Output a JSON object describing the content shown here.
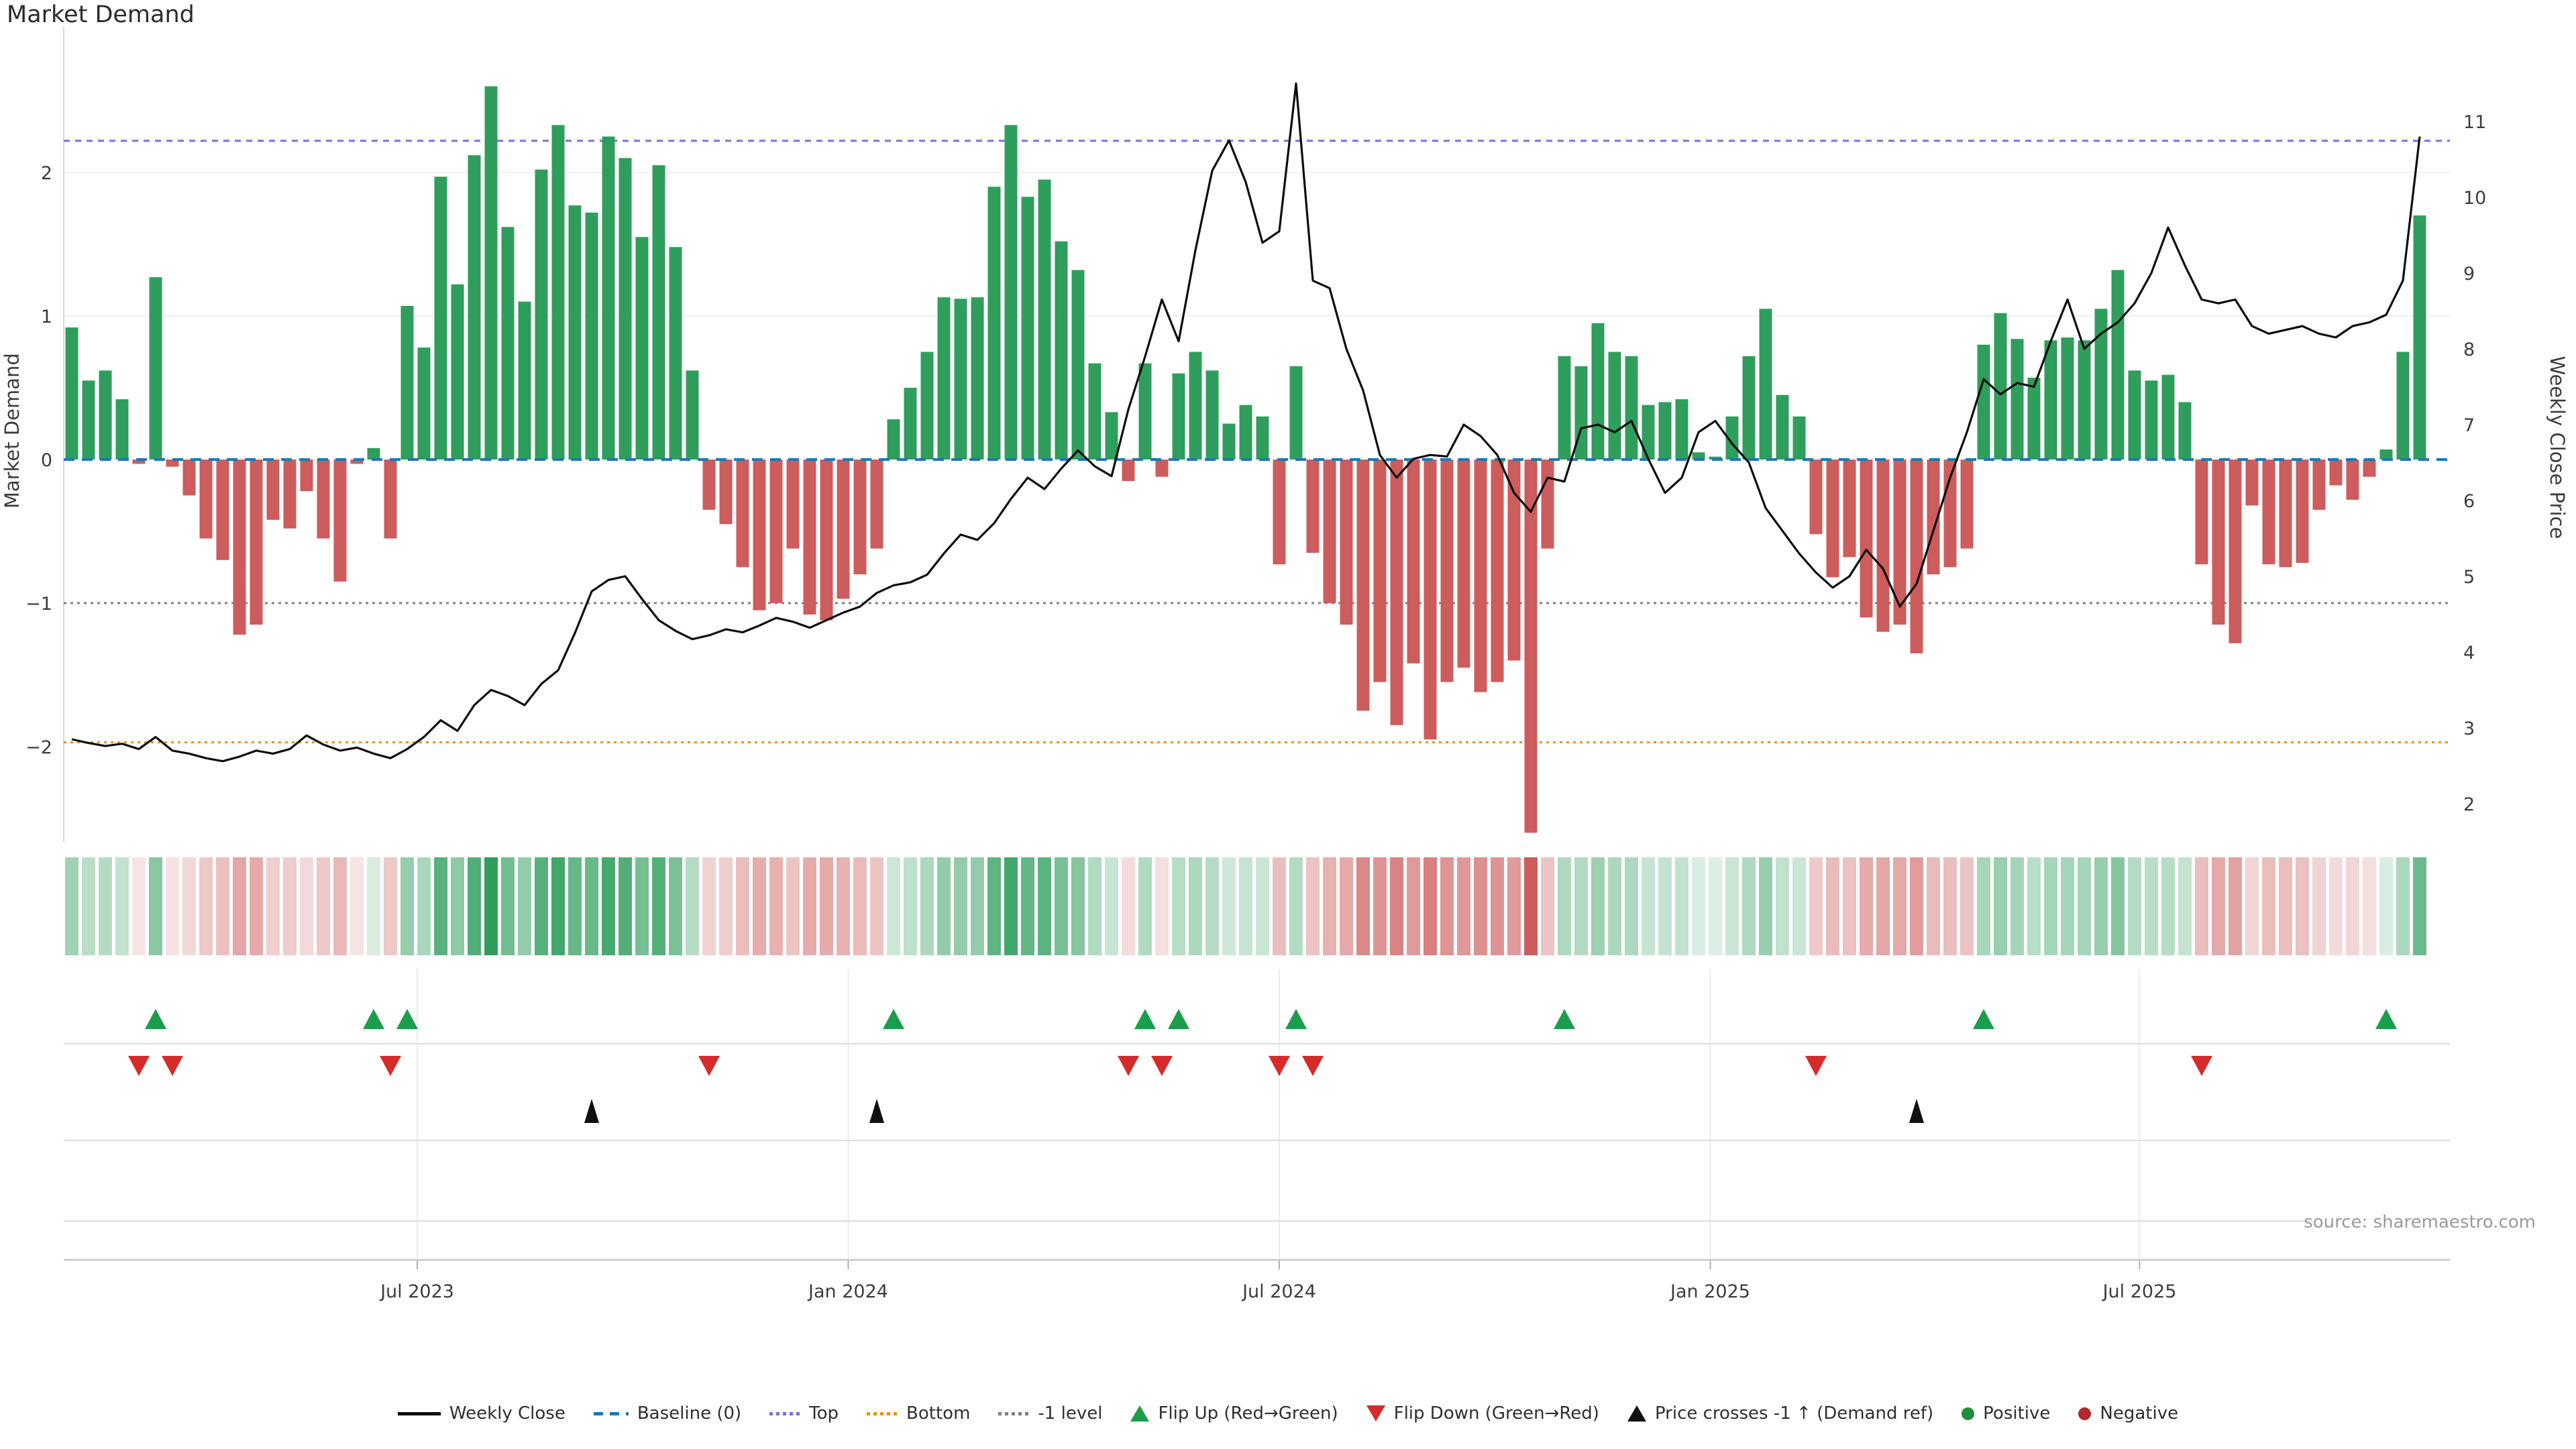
{
  "title": "Market Demand",
  "source": "source: sharemaestro.com",
  "axes": {
    "left": {
      "label": "Market Demand",
      "ticks": [
        "2",
        "1",
        "0",
        "−1",
        "−2"
      ],
      "tick_values": [
        2,
        1,
        0,
        -1,
        -2
      ],
      "range": [
        -2.8,
        3.0
      ]
    },
    "right": {
      "label": "Weekly Close Price",
      "ticks": [
        "2",
        "3",
        "4",
        "5",
        "6",
        "7",
        "8",
        "9",
        "10",
        "11"
      ],
      "tick_values": [
        2,
        3,
        4,
        5,
        6,
        7,
        8,
        9,
        10,
        11
      ],
      "range": [
        1.5,
        12.2
      ]
    },
    "x": {
      "tick_labels": [
        "Jul 2023",
        "Jan 2024",
        "Jul 2024",
        "Jan 2025",
        "Jul 2025"
      ],
      "tick_weeks": [
        20.6,
        46.3,
        72.0,
        97.7,
        123.3
      ]
    }
  },
  "reference_lines": {
    "baseline": {
      "label": "Baseline (0)",
      "value": 0,
      "color": "#1f77b4",
      "style": "dashed"
    },
    "top": {
      "label": "Top",
      "value": 2.22,
      "color": "#7572d8",
      "style": "dotted"
    },
    "bottom": {
      "label": "Bottom",
      "value": -1.97,
      "color": "#e8930c",
      "style": "dotted"
    },
    "minus1": {
      "label": "-1 level",
      "value": -1.0,
      "color": "#7f7f7f",
      "style": "dotted"
    }
  },
  "colors": {
    "bar_positive": "#2f9e5c",
    "bar_negative": "#cd5c5c",
    "price_line": "#0d0d0d",
    "flip_up": "#1b9e4b",
    "flip_down": "#d62b2b",
    "price_cross": "#111111",
    "positive_dot": "#1e8e3e",
    "negative_dot": "#b3282d",
    "grid": "#eef0f3",
    "separator": "#dcdcdc",
    "axis_text": "#3d3d3d",
    "source_text": "#9a9a9a"
  },
  "legend": {
    "items": [
      {
        "glyph": "line",
        "color": "#0d0d0d",
        "label": "Weekly Close"
      },
      {
        "glyph": "dash",
        "color": "#1f77b4",
        "label": "Baseline (0)"
      },
      {
        "glyph": "dot",
        "color": "#7572d8",
        "label": "Top"
      },
      {
        "glyph": "dot",
        "color": "#e8930c",
        "label": "Bottom"
      },
      {
        "glyph": "dot",
        "color": "#7f7f7f",
        "label": "-1 level"
      },
      {
        "glyph": "tri-up",
        "color": "#1b9e4b",
        "label": "Flip Up (Red→Green)"
      },
      {
        "glyph": "tri-down",
        "color": "#d62b2b",
        "label": "Flip Down (Green→Red)"
      },
      {
        "glyph": "tri-up",
        "color": "#111111",
        "label": "Price crosses -1 ↑ (Demand ref)"
      },
      {
        "glyph": "circle",
        "color": "#1e8e3e",
        "label": "Positive"
      },
      {
        "glyph": "circle",
        "color": "#b3282d",
        "label": "Negative"
      }
    ]
  },
  "chart_data": {
    "type": "combo",
    "x_unit": "weeks",
    "x_span": "Feb 2023 - Nov 2025",
    "x_ticks": [
      {
        "label": "Jul 2023",
        "week": 20.6
      },
      {
        "label": "Jan 2024",
        "week": 46.3
      },
      {
        "label": "Jul 2024",
        "week": 72.0
      },
      {
        "label": "Jan 2025",
        "week": 97.7
      },
      {
        "label": "Jul 2025",
        "week": 123.3
      }
    ],
    "series": [
      {
        "name": "Market Demand",
        "type": "bar",
        "axis": "left",
        "values": [
          0.92,
          0.55,
          0.62,
          0.42,
          -0.03,
          1.27,
          -0.05,
          -0.25,
          -0.55,
          -0.7,
          -1.22,
          -1.15,
          -0.42,
          -0.48,
          -0.22,
          -0.55,
          -0.85,
          -0.03,
          0.08,
          -0.55,
          1.07,
          0.78,
          1.97,
          1.22,
          2.12,
          2.6,
          1.62,
          1.1,
          2.02,
          2.33,
          1.77,
          1.72,
          2.25,
          2.1,
          1.55,
          2.05,
          1.48,
          0.62,
          -0.35,
          -0.45,
          -0.75,
          -1.05,
          -1.0,
          -0.62,
          -1.08,
          -1.12,
          -0.97,
          -0.8,
          -0.62,
          0.28,
          0.5,
          0.75,
          1.13,
          1.12,
          1.13,
          1.9,
          2.33,
          1.83,
          1.95,
          1.52,
          1.32,
          0.67,
          0.33,
          -0.15,
          0.67,
          -0.12,
          0.6,
          0.75,
          0.62,
          0.25,
          0.38,
          0.3,
          -0.73,
          0.65,
          -0.65,
          -1.0,
          -1.15,
          -1.75,
          -1.55,
          -1.85,
          -1.42,
          -1.95,
          -1.55,
          -1.45,
          -1.62,
          -1.55,
          -1.4,
          -2.6,
          -0.62,
          0.72,
          0.65,
          0.95,
          0.75,
          0.72,
          0.38,
          0.4,
          0.42,
          0.05,
          0.02,
          0.3,
          0.72,
          1.05,
          0.45,
          0.3,
          -0.52,
          -0.82,
          -0.68,
          -1.1,
          -1.2,
          -1.15,
          -1.35,
          -0.8,
          -0.75,
          -0.62,
          0.8,
          1.02,
          0.84,
          0.57,
          0.83,
          0.85,
          0.83,
          1.05,
          1.32,
          0.62,
          0.55,
          0.59,
          0.4,
          -0.73,
          -1.15,
          -1.28,
          -0.32,
          -0.73,
          -0.75,
          -0.72,
          -0.35,
          -0.18,
          -0.28,
          -0.12,
          0.07,
          0.75,
          1.7
        ]
      },
      {
        "name": "Weekly Close",
        "type": "line",
        "axis": "right",
        "values": [
          2.85,
          2.8,
          2.76,
          2.79,
          2.72,
          2.88,
          2.7,
          2.66,
          2.6,
          2.56,
          2.62,
          2.7,
          2.66,
          2.72,
          2.9,
          2.78,
          2.7,
          2.74,
          2.66,
          2.6,
          2.72,
          2.88,
          3.1,
          2.96,
          3.3,
          3.5,
          3.42,
          3.3,
          3.58,
          3.76,
          4.25,
          4.8,
          4.95,
          5.0,
          4.7,
          4.42,
          4.28,
          4.17,
          4.22,
          4.3,
          4.26,
          4.35,
          4.45,
          4.4,
          4.32,
          4.42,
          4.52,
          4.6,
          4.78,
          4.88,
          4.92,
          5.02,
          5.3,
          5.55,
          5.48,
          5.7,
          6.02,
          6.3,
          6.15,
          6.42,
          6.66,
          6.45,
          6.32,
          7.2,
          7.9,
          8.65,
          8.1,
          9.3,
          10.35,
          10.75,
          10.2,
          9.4,
          9.55,
          11.5,
          8.9,
          8.8,
          8.0,
          7.45,
          6.6,
          6.3,
          6.55,
          6.6,
          6.58,
          7.0,
          6.85,
          6.6,
          6.1,
          5.85,
          6.3,
          6.25,
          6.95,
          7.0,
          6.9,
          7.05,
          6.55,
          6.1,
          6.3,
          6.9,
          7.05,
          6.75,
          6.5,
          5.9,
          5.6,
          5.3,
          5.05,
          4.85,
          5.0,
          5.35,
          5.1,
          4.6,
          4.9,
          5.6,
          6.3,
          6.9,
          7.6,
          7.4,
          7.55,
          7.5,
          8.1,
          8.65,
          8.0,
          8.2,
          8.35,
          8.6,
          9.0,
          9.6,
          9.1,
          8.65,
          8.6,
          8.65,
          8.3,
          8.2,
          8.25,
          8.3,
          8.2,
          8.15,
          8.3,
          8.35,
          8.45,
          8.9,
          10.8
        ]
      }
    ],
    "heatmap": {
      "description": "weekly demand intensity strip, color = sign, opacity = |value|",
      "derived_from": "Market Demand"
    },
    "markers": {
      "flip_up_weeks": [
        5,
        18,
        20,
        49,
        64,
        66,
        73,
        89,
        114,
        138
      ],
      "flip_down_weeks": [
        4,
        6,
        19,
        38,
        63,
        65,
        72,
        74,
        104,
        127
      ],
      "price_cross_weeks": [
        31,
        48,
        110
      ]
    },
    "title": "Market Demand",
    "legend_position": "bottom-center",
    "grid": "horizontal-light"
  }
}
